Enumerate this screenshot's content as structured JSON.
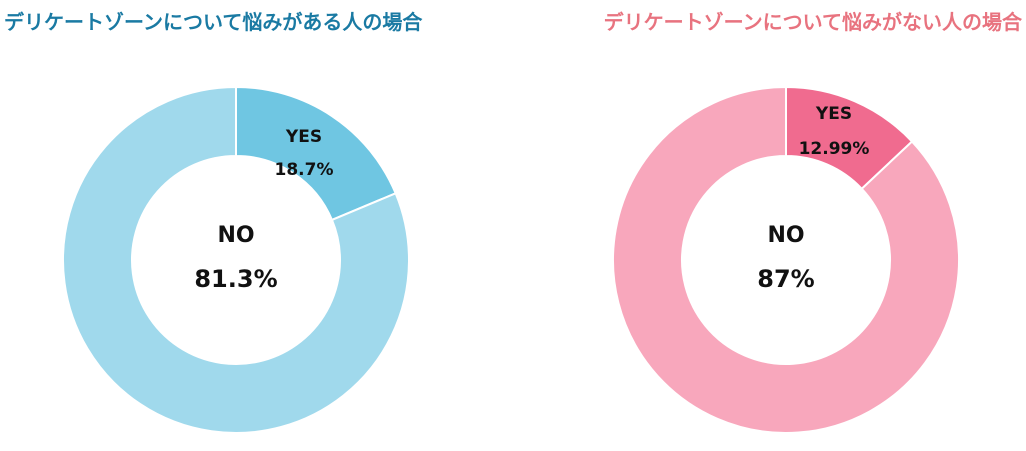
{
  "chart_data": [
    {
      "type": "pie",
      "title": "デリケートゾーンについて悩みがある人の場合",
      "title_color": "#1a7aa3",
      "categories": [
        "YES",
        "NO"
      ],
      "values": [
        18.7,
        81.3
      ],
      "value_labels": [
        "18.7%",
        "81.3%"
      ],
      "colors": [
        "#6fc6e2",
        "#a0d9ec"
      ]
    },
    {
      "type": "pie",
      "title": "デリケートゾーンについて悩みがない人の場合",
      "title_color": "#e8737f",
      "categories": [
        "YES",
        "NO"
      ],
      "values": [
        12.99,
        87
      ],
      "value_labels": [
        "12.99%",
        "87%"
      ],
      "colors": [
        "#f06b8f",
        "#f8a7bc"
      ]
    }
  ]
}
